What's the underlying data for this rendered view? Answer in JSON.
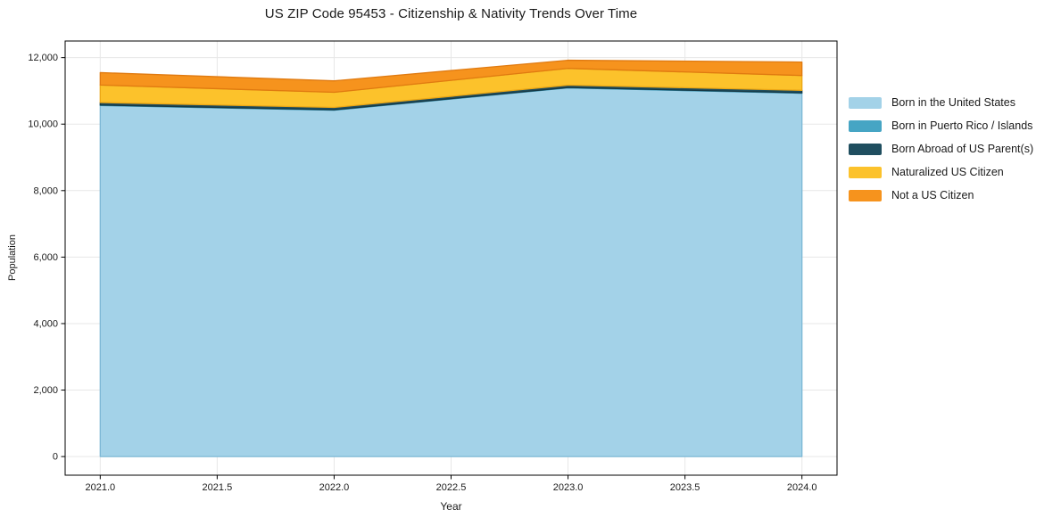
{
  "figure": {
    "background": "#ffffff",
    "gridline_color": "#e7e7e7",
    "axis_color": "#000000",
    "text_color": "#1a1a1a"
  },
  "chart_data": {
    "type": "area",
    "stacked": true,
    "title": "US ZIP Code 95453 - Citizenship & Nativity Trends Over Time",
    "xlabel": "Year",
    "ylabel": "Population",
    "x": [
      2021,
      2022,
      2023,
      2024
    ],
    "series": [
      {
        "name": "Born in the United States",
        "color": "#A3D2E8",
        "edge_color": "#7CB8D6",
        "values": [
          10560,
          10420,
          11090,
          10930
        ]
      },
      {
        "name": "Born in Puerto Rico / Islands",
        "color": "#46A5C4",
        "edge_color": "#2F8CAB",
        "values": [
          15,
          12,
          12,
          12
        ]
      },
      {
        "name": "Born Abroad of US Parent(s)",
        "color": "#1F4E5F",
        "edge_color": "#163844",
        "values": [
          75,
          70,
          70,
          75
        ]
      },
      {
        "name": "Naturalized US Citizen",
        "color": "#FCC22B",
        "edge_color": "#ECA715",
        "values": [
          525,
          455,
          505,
          445
        ]
      },
      {
        "name": "Not a US Citizen",
        "color": "#F6931D",
        "edge_color": "#E07A10",
        "values": [
          375,
          345,
          245,
          405
        ]
      }
    ],
    "stack_totals": [
      11550,
      11302,
      11922,
      11867
    ],
    "x_ticks": [
      2021.0,
      2021.5,
      2022.0,
      2022.5,
      2023.0,
      2023.5,
      2024.0
    ],
    "y_ticks": [
      0,
      2000,
      4000,
      6000,
      8000,
      10000,
      12000
    ],
    "xlim": [
      2020.85,
      2024.15
    ],
    "ylim": [
      -560,
      12500
    ],
    "grid": true,
    "legend_position": "right"
  }
}
